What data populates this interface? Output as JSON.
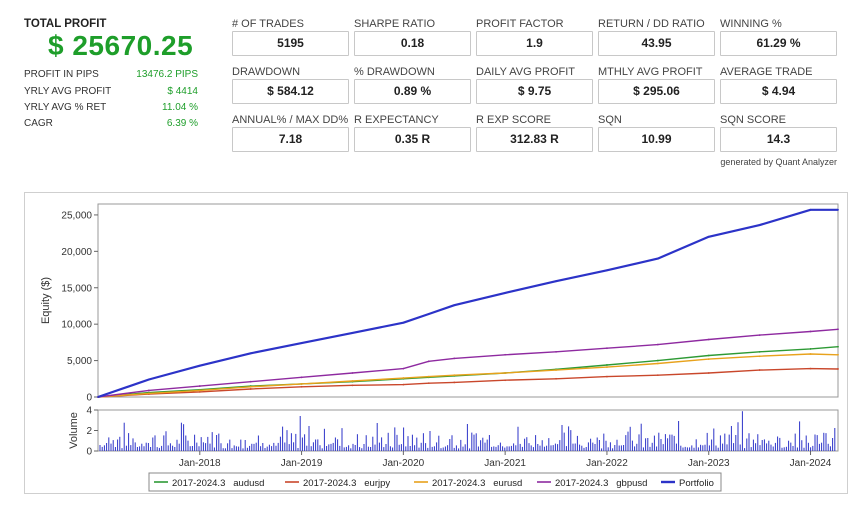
{
  "summary": {
    "total_label": "TOTAL PROFIT",
    "total_value": "$ 25670.25",
    "rows": [
      {
        "label": "PROFIT IN PIPS",
        "value": "13476.2 PIPS"
      },
      {
        "label": "YRLY AVG PROFIT",
        "value": "$ 4414"
      },
      {
        "label": "YRLY AVG % RET",
        "value": "11.04 %"
      },
      {
        "label": "CAGR",
        "value": "6.39 %"
      }
    ]
  },
  "metrics": [
    {
      "label": "# OF TRADES",
      "value": "5195"
    },
    {
      "label": "SHARPE RATIO",
      "value": "0.18"
    },
    {
      "label": "PROFIT FACTOR",
      "value": "1.9"
    },
    {
      "label": "RETURN / DD RATIO",
      "value": "43.95"
    },
    {
      "label": "WINNING %",
      "value": "61.29 %"
    },
    {
      "label": "DRAWDOWN",
      "value": "$ 584.12"
    },
    {
      "label": "% DRAWDOWN",
      "value": "0.89 %"
    },
    {
      "label": "DAILY AVG PROFIT",
      "value": "$ 9.75"
    },
    {
      "label": "MTHLY AVG PROFIT",
      "value": "$ 295.06"
    },
    {
      "label": "AVERAGE TRADE",
      "value": "$ 4.94"
    },
    {
      "label": "ANNUAL% / MAX DD%",
      "value": "7.18"
    },
    {
      "label": "R EXPECTANCY",
      "value": "0.35 R"
    },
    {
      "label": "R EXP SCORE",
      "value": "312.83 R"
    },
    {
      "label": "SQN",
      "value": "10.99"
    },
    {
      "label": "SQN SCORE",
      "value": "14.3"
    }
  ],
  "credit": "generated by Quant Analyzer",
  "chart_data": {
    "type": "line",
    "ylabel": "Equity ($)",
    "ylim": [
      0,
      26500
    ],
    "yticks": [
      0,
      5000,
      10000,
      15000,
      20000,
      25000
    ],
    "ytick_labels": [
      "0",
      "5,000",
      "10,000",
      "15,000",
      "20,000",
      "25,000"
    ],
    "x_range": [
      2017.0,
      2024.27
    ],
    "xticks": [
      2018,
      2019,
      2020,
      2021,
      2022,
      2023,
      2024
    ],
    "xtick_labels": [
      "Jan-2018",
      "Jan-2019",
      "Jan-2020",
      "Jan-2021",
      "Jan-2022",
      "Jan-2023",
      "Jan-2024"
    ],
    "grid": true,
    "legend_position": "bottom",
    "x": [
      2017.0,
      2017.5,
      2018.0,
      2018.5,
      2019.0,
      2019.5,
      2020.0,
      2020.25,
      2020.5,
      2021.0,
      2021.5,
      2022.0,
      2022.5,
      2023.0,
      2023.5,
      2024.0,
      2024.27
    ],
    "series": [
      {
        "name": "2017-2024.3   audusd",
        "color": "#2e9a35",
        "values": [
          0,
          600,
          1000,
          1500,
          1800,
          2100,
          2500,
          2700,
          2900,
          3300,
          3800,
          4400,
          5000,
          5700,
          6200,
          6600,
          6900
        ]
      },
      {
        "name": "2017-2024.3   eurjpy",
        "color": "#c9472b",
        "values": [
          0,
          400,
          700,
          1100,
          1400,
          1600,
          1700,
          1900,
          2000,
          2300,
          2500,
          2800,
          3000,
          3300,
          3700,
          3900,
          3850
        ]
      },
      {
        "name": "2017-2024.3   eurusd",
        "color": "#e8a21c",
        "values": [
          0,
          500,
          900,
          1400,
          1800,
          2200,
          2600,
          2800,
          3000,
          3300,
          3700,
          4100,
          4600,
          5200,
          5600,
          5900,
          5800
        ]
      },
      {
        "name": "2017-2024.3   gbpusd",
        "color": "#8e2aa0",
        "values": [
          0,
          900,
          1500,
          2100,
          2700,
          3300,
          3900,
          4900,
          5300,
          5800,
          6200,
          6700,
          7200,
          7900,
          8500,
          9000,
          9300
        ]
      },
      {
        "name": "Portfolio",
        "color": "#2c33c8",
        "values": [
          0,
          2400,
          4300,
          6000,
          7400,
          8800,
          10200,
          11400,
          12600,
          14300,
          15900,
          17400,
          19000,
          22000,
          23600,
          25700,
          25700
        ]
      }
    ],
    "volume": {
      "ylabel": "Volume",
      "ylim": [
        0,
        4
      ],
      "yticks": [
        0,
        2,
        4
      ],
      "ytick_labels": [
        "0",
        "2",
        "4"
      ],
      "color": "#2c33c8"
    }
  }
}
